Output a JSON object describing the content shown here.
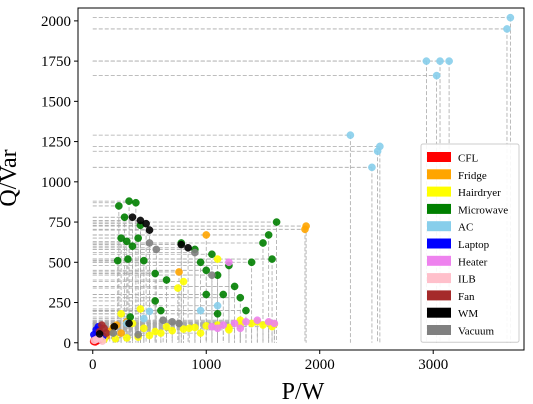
{
  "chart_data": {
    "type": "scatter",
    "title": "",
    "xlabel": "P/W",
    "ylabel": "Q/Var",
    "xlim": [
      -130,
      3800
    ],
    "ylim": [
      -45,
      2080
    ],
    "xticks": [
      0,
      1000,
      2000,
      3000
    ],
    "yticks": [
      0,
      250,
      500,
      750,
      1000,
      1250,
      1500,
      1750,
      2000
    ],
    "grid": false,
    "reference_lines": "dashed gray lines from each point to both axes",
    "legend_position": "lower-right",
    "series": [
      {
        "name": "CFL",
        "color": "#ff0000",
        "points": [
          [
            8,
            8
          ],
          [
            15,
            20
          ],
          [
            22,
            5
          ],
          [
            30,
            30
          ],
          [
            40,
            12
          ],
          [
            55,
            35
          ],
          [
            65,
            18
          ],
          [
            75,
            25
          ]
        ]
      },
      {
        "name": "Fridge",
        "color": "#ffa500",
        "points": [
          [
            120,
            40
          ],
          [
            150,
            70
          ],
          [
            180,
            95
          ],
          [
            210,
            110
          ],
          [
            250,
            60
          ],
          [
            300,
            130
          ],
          [
            760,
            440
          ],
          [
            1000,
            670
          ],
          [
            1880,
            725
          ],
          [
            1870,
            705
          ]
        ]
      },
      {
        "name": "Hairdryer",
        "color": "#ffff00",
        "points": [
          [
            100,
            20
          ],
          [
            200,
            25
          ],
          [
            300,
            30
          ],
          [
            400,
            35
          ],
          [
            500,
            45
          ],
          [
            600,
            60
          ],
          [
            700,
            75
          ],
          [
            800,
            85
          ],
          [
            900,
            95
          ],
          [
            1000,
            105
          ],
          [
            1100,
            110
          ],
          [
            1200,
            95
          ],
          [
            1300,
            115
          ],
          [
            1400,
            120
          ],
          [
            1500,
            110
          ],
          [
            1550,
            125
          ],
          [
            1600,
            115
          ],
          [
            1580,
            100
          ],
          [
            1450,
            130
          ],
          [
            350,
            120
          ],
          [
            450,
            90
          ],
          [
            650,
            100
          ],
          [
            850,
            90
          ],
          [
            750,
            340
          ],
          [
            800,
            380
          ],
          [
            1100,
            520
          ],
          [
            1200,
            80
          ],
          [
            950,
            60
          ],
          [
            550,
            70
          ],
          [
            250,
            180
          ],
          [
            420,
            210
          ],
          [
            1300,
            140
          ]
        ]
      },
      {
        "name": "Microwave",
        "color": "#008000",
        "points": [
          [
            230,
            850
          ],
          [
            320,
            880
          ],
          [
            380,
            870
          ],
          [
            280,
            780
          ],
          [
            420,
            730
          ],
          [
            250,
            650
          ],
          [
            300,
            630
          ],
          [
            350,
            600
          ],
          [
            400,
            650
          ],
          [
            220,
            510
          ],
          [
            310,
            520
          ],
          [
            450,
            510
          ],
          [
            550,
            430
          ],
          [
            650,
            390
          ],
          [
            780,
            620
          ],
          [
            900,
            580
          ],
          [
            950,
            500
          ],
          [
            1000,
            450
          ],
          [
            1050,
            550
          ],
          [
            1100,
            420
          ],
          [
            1150,
            300
          ],
          [
            1250,
            350
          ],
          [
            1300,
            280
          ],
          [
            1350,
            200
          ],
          [
            1400,
            500
          ],
          [
            1500,
            620
          ],
          [
            1550,
            670
          ],
          [
            1580,
            520
          ],
          [
            1620,
            750
          ],
          [
            1000,
            300
          ],
          [
            1100,
            180
          ],
          [
            550,
            260
          ],
          [
            330,
            160
          ],
          [
            600,
            200
          ],
          [
            1200,
            480
          ]
        ]
      },
      {
        "name": "AC",
        "color": "#87ceeb",
        "points": [
          [
            2270,
            1290
          ],
          [
            2460,
            1090
          ],
          [
            2510,
            1190
          ],
          [
            2530,
            1220
          ],
          [
            2940,
            1750
          ],
          [
            3030,
            1660
          ],
          [
            3060,
            1750
          ],
          [
            3140,
            1750
          ],
          [
            3650,
            1950
          ],
          [
            3680,
            2020
          ],
          [
            300,
            120
          ],
          [
            450,
            150
          ],
          [
            950,
            200
          ],
          [
            1100,
            230
          ],
          [
            500,
            195
          ]
        ]
      },
      {
        "name": "Laptop",
        "color": "#0000ff",
        "points": [
          [
            10,
            50
          ],
          [
            30,
            80
          ],
          [
            50,
            100
          ],
          [
            70,
            60
          ],
          [
            90,
            40
          ],
          [
            45,
            25
          ]
        ]
      },
      {
        "name": "Heater",
        "color": "#ee82ee",
        "points": [
          [
            1050,
            100
          ],
          [
            1150,
            110
          ],
          [
            1250,
            120
          ],
          [
            1350,
            130
          ],
          [
            1450,
            140
          ],
          [
            1550,
            130
          ],
          [
            1600,
            120
          ],
          [
            1100,
            90
          ],
          [
            1200,
            500
          ],
          [
            1300,
            90
          ]
        ]
      },
      {
        "name": "ILB",
        "color": "#ffc0cb",
        "points": [
          [
            15,
            15
          ],
          [
            35,
            22
          ],
          [
            60,
            30
          ],
          [
            85,
            10
          ]
        ]
      },
      {
        "name": "Fan",
        "color": "#a52a2a",
        "points": [
          [
            60,
            70
          ],
          [
            80,
            110
          ],
          [
            100,
            90
          ],
          [
            120,
            60
          ]
        ]
      },
      {
        "name": "WM",
        "color": "#000000",
        "points": [
          [
            350,
            780
          ],
          [
            420,
            760
          ],
          [
            470,
            740
          ],
          [
            500,
            700
          ],
          [
            780,
            610
          ],
          [
            840,
            590
          ],
          [
            320,
            120
          ],
          [
            190,
            100
          ],
          [
            60,
            55
          ]
        ]
      },
      {
        "name": "Vacuum",
        "color": "#808080",
        "points": [
          [
            500,
            620
          ],
          [
            560,
            580
          ],
          [
            620,
            140
          ],
          [
            700,
            130
          ],
          [
            760,
            120
          ],
          [
            900,
            560
          ],
          [
            1050,
            420
          ],
          [
            400,
            50
          ],
          [
            180,
            60
          ]
        ]
      }
    ]
  }
}
